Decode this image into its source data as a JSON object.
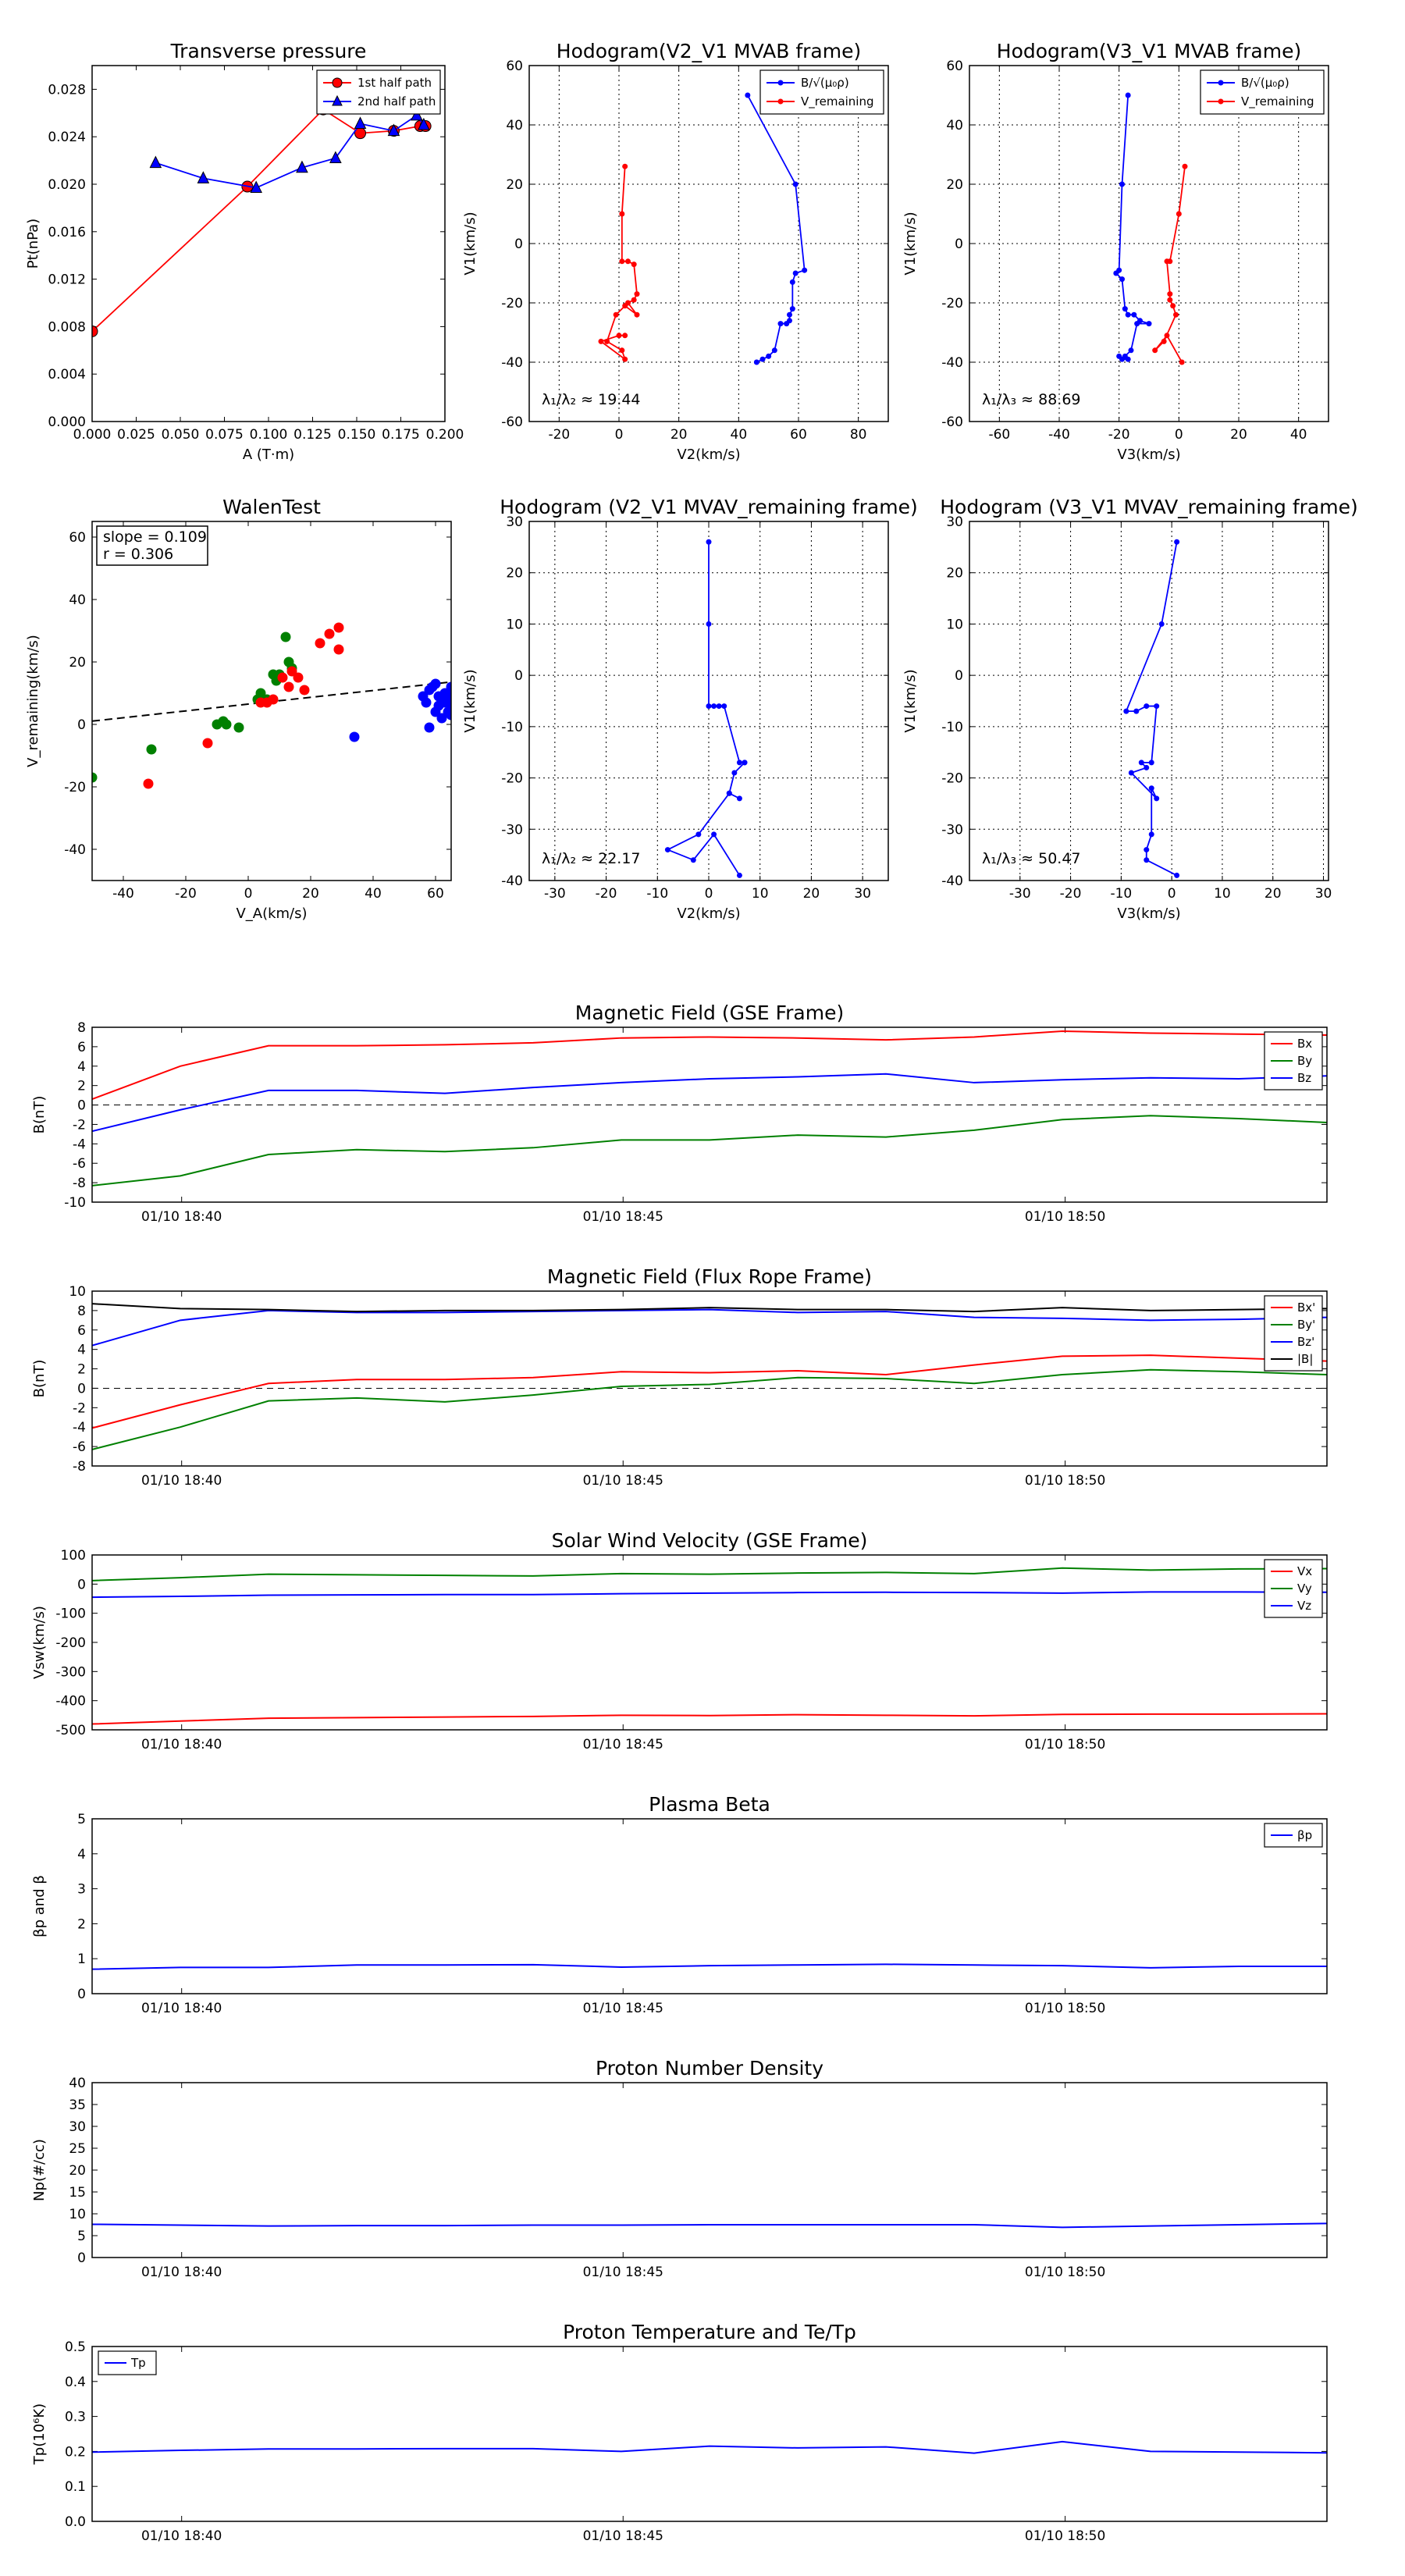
{
  "colors": {
    "red": "#ff0000",
    "blue": "#0000ff",
    "green": "#008000",
    "black": "#000000"
  },
  "chart_data": [
    {
      "id": "tp",
      "type": "line",
      "title": "Transverse pressure",
      "xlabel": "A (T·m)",
      "ylabel": "Pt(nPa)",
      "xlim": [
        0.0,
        0.2
      ],
      "ylim": [
        0.0,
        0.03
      ],
      "xticks": [
        "0.000",
        "0.025",
        "0.050",
        "0.075",
        "0.100",
        "0.125",
        "0.150",
        "0.175",
        "0.200"
      ],
      "yticks": [
        "0.000",
        "0.004",
        "0.008",
        "0.012",
        "0.016",
        "0.020",
        "0.024",
        "0.028"
      ],
      "legend": "top-right",
      "grid": false,
      "series": [
        {
          "name": "1st half path",
          "color": "red",
          "marker": "circle",
          "x": [
            0.0,
            0.088,
            0.131,
            0.152,
            0.171,
            0.186,
            0.189
          ],
          "y": [
            0.0076,
            0.0198,
            0.0263,
            0.0243,
            0.0245,
            0.0249,
            0.0249
          ]
        },
        {
          "name": "2nd half path",
          "color": "blue",
          "marker": "triangle",
          "x": [
            0.036,
            0.063,
            0.093,
            0.119,
            0.138,
            0.152,
            0.171,
            0.184,
            0.188
          ],
          "y": [
            0.0218,
            0.0205,
            0.0197,
            0.0214,
            0.0222,
            0.0251,
            0.0245,
            0.0258,
            0.025
          ]
        }
      ]
    },
    {
      "id": "h1",
      "type": "line",
      "title": "Hodogram(V2_V1 MVAB frame)",
      "xlabel": "V2(km/s)",
      "ylabel": "V1(km/s)",
      "xlim": [
        -30,
        90
      ],
      "ylim": [
        -60,
        60
      ],
      "xticks": [
        "-20",
        "0",
        "20",
        "40",
        "60",
        "80"
      ],
      "yticks": [
        "-60",
        "-40",
        "-20",
        "0",
        "20",
        "40",
        "60"
      ],
      "legend": "top-right",
      "grid": true,
      "annotation": "λ₁/λ₂ ≈ 19.44",
      "series": [
        {
          "name": "B/√(μ₀ρ)",
          "color": "blue",
          "marker": "dot",
          "x": [
            43,
            59,
            62,
            59,
            58,
            58,
            57,
            57,
            56,
            54,
            52,
            50,
            48,
            46
          ],
          "y": [
            50,
            20,
            -9,
            -10,
            -13,
            -22,
            -24,
            -26,
            -27,
            -27,
            -36,
            -38,
            -39,
            -40
          ]
        },
        {
          "name": "V_remaining",
          "color": "red",
          "marker": "dot",
          "x": [
            2,
            1,
            1,
            3,
            5,
            6,
            5,
            3,
            6,
            2,
            -1,
            -4,
            1,
            2,
            -6,
            0,
            2
          ],
          "y": [
            26,
            10,
            -6,
            -6,
            -7,
            -17,
            -19,
            -20,
            -24,
            -21,
            -24,
            -33,
            -36,
            -39,
            -33,
            -31,
            -31
          ]
        }
      ]
    },
    {
      "id": "h2",
      "type": "line",
      "title": "Hodogram(V3_V1 MVAB frame)",
      "xlabel": "V3(km/s)",
      "ylabel": "V1(km/s)",
      "xlim": [
        -70,
        50
      ],
      "ylim": [
        -60,
        60
      ],
      "xticks": [
        "-60",
        "-40",
        "-20",
        "0",
        "20",
        "40"
      ],
      "yticks": [
        "-60",
        "-40",
        "-20",
        "0",
        "20",
        "40",
        "60"
      ],
      "legend": "top-right",
      "grid": true,
      "annotation": "λ₁/λ₃ ≈ 88.69",
      "series": [
        {
          "name": "B/√(μ₀ρ)",
          "color": "blue",
          "marker": "dot",
          "x": [
            -17,
            -19,
            -20,
            -21,
            -19,
            -18,
            -17,
            -15,
            -13,
            -10,
            -14,
            -16,
            -18,
            -17,
            -19,
            -20
          ],
          "y": [
            50,
            20,
            -9,
            -10,
            -12,
            -22,
            -24,
            -24,
            -26,
            -27,
            -27,
            -36,
            -38,
            -39,
            -39,
            -38
          ]
        },
        {
          "name": "V_remaining",
          "color": "red",
          "marker": "dot",
          "x": [
            2,
            0,
            -3,
            -4,
            -3,
            -3,
            -2,
            -1,
            -5,
            -8,
            -4,
            1
          ],
          "y": [
            26,
            10,
            -6,
            -6,
            -17,
            -19,
            -21,
            -24,
            -33,
            -36,
            -31,
            -40
          ]
        }
      ]
    },
    {
      "id": "walen",
      "type": "scatter",
      "title": "WalenTest",
      "xlabel": "V_A(km/s)",
      "ylabel": "V_remaining(km/s)",
      "xlim": [
        -50,
        65
      ],
      "ylim": [
        -50,
        65
      ],
      "xticks": [
        "-40",
        "-20",
        "0",
        "20",
        "40",
        "60"
      ],
      "yticks": [
        "-40",
        "-20",
        "0",
        "20",
        "40",
        "60"
      ],
      "grid": false,
      "fit_line": {
        "slope": 0.109,
        "intercept": 6.5,
        "color": "black",
        "dash": true
      },
      "annotation_box": [
        "slope = 0.109",
        "r = 0.306"
      ],
      "series": [
        {
          "color": "green",
          "x": [
            -50,
            -31,
            -10,
            -8,
            -7,
            -3,
            3,
            4,
            6,
            8,
            9,
            10,
            12,
            13,
            14
          ],
          "y": [
            -17,
            -8,
            0,
            1,
            0,
            -1,
            8,
            10,
            8,
            16,
            14,
            16,
            28,
            20,
            18
          ]
        },
        {
          "color": "red",
          "x": [
            -32,
            -13,
            4,
            6,
            8,
            11,
            13,
            14,
            16,
            18,
            23,
            26,
            29,
            29
          ],
          "y": [
            -19,
            -6,
            7,
            7,
            8,
            15,
            12,
            17,
            15,
            11,
            26,
            29,
            31,
            24
          ]
        },
        {
          "color": "blue",
          "x": [
            34,
            56,
            57,
            58,
            58,
            59,
            60,
            60,
            61,
            61,
            62,
            63,
            63,
            64,
            64,
            65,
            65,
            65,
            65
          ],
          "y": [
            -4,
            9,
            7,
            11,
            -1,
            12,
            13,
            4,
            9,
            6,
            2,
            10,
            7,
            4,
            8,
            12,
            9,
            6,
            3
          ]
        }
      ]
    },
    {
      "id": "h3",
      "type": "line",
      "title": "Hodogram (V2_V1 MVAV_remaining frame)",
      "xlabel": "V2(km/s)",
      "ylabel": "V1(km/s)",
      "xlim": [
        -35,
        35
      ],
      "ylim": [
        -40,
        30
      ],
      "xticks": [
        "-30",
        "-20",
        "-10",
        "0",
        "10",
        "20",
        "30"
      ],
      "yticks": [
        "-40",
        "-30",
        "-20",
        "-10",
        "0",
        "10",
        "20",
        "30"
      ],
      "grid": true,
      "annotation": "λ₁/λ₂ ≈ 22.17",
      "series": [
        {
          "color": "blue",
          "marker": "dot",
          "x": [
            0,
            0,
            0,
            1,
            2,
            3,
            6,
            7,
            7,
            5,
            4,
            6,
            4,
            -2,
            -8,
            -3,
            1,
            6
          ],
          "y": [
            26,
            10,
            -6,
            -6,
            -6,
            -6,
            -17,
            -17,
            -17,
            -19,
            -23,
            -24,
            -23,
            -31,
            -34,
            -36,
            -31,
            -39
          ]
        }
      ]
    },
    {
      "id": "h4",
      "type": "line",
      "title": "Hodogram (V3_V1 MVAV_remaining frame)",
      "xlabel": "V3(km/s)",
      "ylabel": "V1(km/s)",
      "xlim": [
        -40,
        31
      ],
      "ylim": [
        -40,
        30
      ],
      "xticks": [
        "-30",
        "-20",
        "-10",
        "0",
        "10",
        "20",
        "30"
      ],
      "yticks": [
        "-40",
        "-30",
        "-20",
        "-10",
        "0",
        "10",
        "20",
        "30"
      ],
      "grid": true,
      "annotation": "λ₁/λ₃ ≈ 50.47",
      "series": [
        {
          "color": "blue",
          "marker": "dot",
          "x": [
            1,
            -2,
            -9,
            -7,
            -5,
            -3,
            -4,
            -6,
            -5,
            -8,
            -3,
            -4,
            -4,
            -5,
            -5,
            1
          ],
          "y": [
            26,
            10,
            -7,
            -7,
            -6,
            -6,
            -17,
            -17,
            -18,
            -19,
            -24,
            -22,
            -31,
            -34,
            -36,
            -39
          ]
        }
      ]
    },
    {
      "id": "ts1",
      "type": "line",
      "title": "Magnetic Field (GSE Frame)",
      "ylabel": "B(nT)",
      "ylim": [
        -10,
        8
      ],
      "yticks": [
        "-10",
        "-8",
        "-6",
        "-4",
        "-2",
        "0",
        "2",
        "4",
        "6",
        "8"
      ],
      "xticks": [
        "01/10 18:40",
        "01/10 18:45",
        "01/10 18:50"
      ],
      "zero_line": true,
      "legend": "top-right",
      "series": [
        {
          "name": "Bx",
          "color": "red",
          "values": [
            0.6,
            4.0,
            6.1,
            6.1,
            6.2,
            6.4,
            6.9,
            7.0,
            6.9,
            6.7,
            7.0,
            7.6,
            7.4,
            7.3,
            7.2
          ]
        },
        {
          "name": "By",
          "color": "green",
          "values": [
            -8.3,
            -7.3,
            -5.1,
            -4.6,
            -4.8,
            -4.4,
            -3.6,
            -3.6,
            -3.1,
            -3.3,
            -2.6,
            -1.5,
            -1.1,
            -1.4,
            -1.8
          ]
        },
        {
          "name": "Bz",
          "color": "blue",
          "values": [
            -2.7,
            -0.5,
            1.5,
            1.5,
            1.2,
            1.8,
            2.3,
            2.7,
            2.9,
            3.2,
            2.3,
            2.6,
            2.8,
            2.7,
            3.0
          ]
        }
      ]
    },
    {
      "id": "ts2",
      "type": "line",
      "title": "Magnetic Field (Flux Rope Frame)",
      "ylabel": "B(nT)",
      "ylim": [
        -8,
        10
      ],
      "yticks": [
        "-8",
        "-6",
        "-4",
        "-2",
        "0",
        "2",
        "4",
        "6",
        "8",
        "10"
      ],
      "xticks": [
        "01/10 18:40",
        "01/10 18:45",
        "01/10 18:50"
      ],
      "zero_line": true,
      "legend": "top-right",
      "series": [
        {
          "name": "Bx'",
          "color": "red",
          "values": [
            -4.1,
            -1.7,
            0.5,
            0.9,
            0.9,
            1.1,
            1.7,
            1.6,
            1.8,
            1.4,
            2.4,
            3.3,
            3.4,
            3.1,
            2.8
          ]
        },
        {
          "name": "By'",
          "color": "green",
          "values": [
            -6.3,
            -4.0,
            -1.3,
            -1.0,
            -1.4,
            -0.7,
            0.2,
            0.4,
            1.1,
            1.0,
            0.5,
            1.4,
            1.9,
            1.7,
            1.4
          ]
        },
        {
          "name": "Bz'",
          "color": "blue",
          "values": [
            4.4,
            7.0,
            8.0,
            7.8,
            7.8,
            7.9,
            8.0,
            8.1,
            7.8,
            7.9,
            7.3,
            7.2,
            7.0,
            7.1,
            7.3
          ]
        },
        {
          "name": "|B|",
          "color": "black",
          "values": [
            8.7,
            8.2,
            8.1,
            7.9,
            8.0,
            8.0,
            8.1,
            8.3,
            8.1,
            8.1,
            7.9,
            8.3,
            8.0,
            8.1,
            8.2
          ]
        }
      ]
    },
    {
      "id": "ts3",
      "type": "line",
      "title": "Solar Wind Velocity (GSE Frame)",
      "ylabel": "Vsw(km/s)",
      "ylim": [
        -500,
        100
      ],
      "yticks": [
        "-500",
        "-400",
        "-300",
        "-200",
        "-100",
        "0",
        "100"
      ],
      "xticks": [
        "01/10 18:40",
        "01/10 18:45",
        "01/10 18:50"
      ],
      "legend": "top-right",
      "series": [
        {
          "name": "Vx",
          "color": "red",
          "values": [
            -480,
            -470,
            -460,
            -458,
            -456,
            -454,
            -450,
            -451,
            -448,
            -450,
            -452,
            -447,
            -446,
            -446,
            -445
          ]
        },
        {
          "name": "Vy",
          "color": "green",
          "values": [
            12,
            22,
            34,
            32,
            30,
            28,
            36,
            34,
            38,
            40,
            36,
            55,
            48,
            52,
            53
          ]
        },
        {
          "name": "Vz",
          "color": "blue",
          "values": [
            -45,
            -42,
            -38,
            -37,
            -36,
            -36,
            -33,
            -31,
            -29,
            -28,
            -29,
            -31,
            -27,
            -27,
            -28
          ]
        }
      ]
    },
    {
      "id": "ts4",
      "type": "line",
      "title": "Plasma Beta",
      "ylabel": "βp and β",
      "ylim": [
        0,
        5
      ],
      "yticks": [
        "0",
        "1",
        "2",
        "3",
        "4",
        "5"
      ],
      "xticks": [
        "01/10 18:40",
        "01/10 18:45",
        "01/10 18:50"
      ],
      "legend": "top-right",
      "series": [
        {
          "name": "βp",
          "color": "blue",
          "values": [
            0.7,
            0.75,
            0.75,
            0.82,
            0.82,
            0.83,
            0.76,
            0.8,
            0.82,
            0.84,
            0.82,
            0.8,
            0.74,
            0.78,
            0.78
          ]
        }
      ]
    },
    {
      "id": "ts5",
      "type": "line",
      "title": "Proton Number Density",
      "ylabel": "Np(#/cc)",
      "ylim": [
        0,
        40
      ],
      "yticks": [
        "0",
        "5",
        "10",
        "15",
        "20",
        "25",
        "30",
        "35",
        "40"
      ],
      "xticks": [
        "01/10 18:40",
        "01/10 18:45",
        "01/10 18:50"
      ],
      "series": [
        {
          "color": "blue",
          "values": [
            7.6,
            7.4,
            7.2,
            7.3,
            7.3,
            7.4,
            7.4,
            7.5,
            7.5,
            7.5,
            7.5,
            6.9,
            7.2,
            7.5,
            7.8
          ]
        }
      ]
    },
    {
      "id": "ts6",
      "type": "line",
      "title": "Proton Temperature and Te/Tp",
      "ylabel": "Tp(10⁶K)",
      "ylim": [
        0,
        0.5
      ],
      "yticks": [
        "0.0",
        "0.1",
        "0.2",
        "0.3",
        "0.4",
        "0.5"
      ],
      "xticks": [
        "01/10 18:40",
        "01/10 18:45",
        "01/10 18:50"
      ],
      "legend": "top-left",
      "series": [
        {
          "name": "Tp",
          "color": "blue",
          "values": [
            0.198,
            0.203,
            0.207,
            0.207,
            0.208,
            0.208,
            0.2,
            0.215,
            0.21,
            0.213,
            0.195,
            0.228,
            0.2,
            0.198,
            0.196
          ]
        }
      ]
    }
  ]
}
